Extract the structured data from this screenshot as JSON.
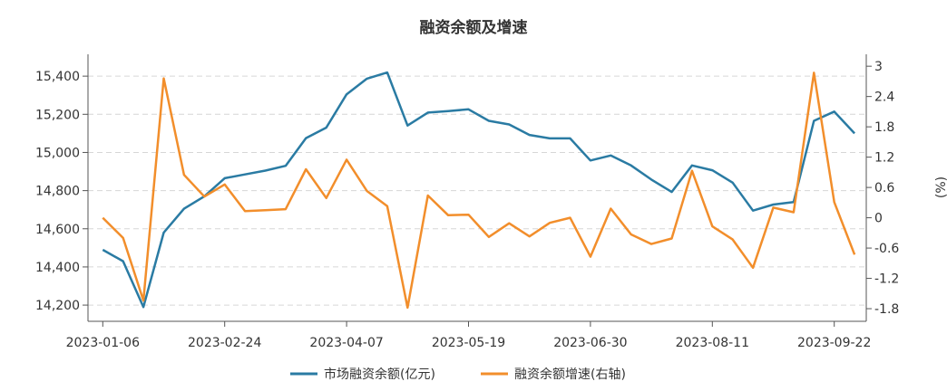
{
  "chart_data": {
    "type": "line",
    "title": "融资余额及增速",
    "right_ylabel": "(%)",
    "x": [
      "2023-01-06",
      "2023-01-13",
      "2023-01-20",
      "2023-02-03",
      "2023-02-10",
      "2023-02-17",
      "2023-02-24",
      "2023-03-03",
      "2023-03-10",
      "2023-03-17",
      "2023-03-24",
      "2023-03-31",
      "2023-04-07",
      "2023-04-14",
      "2023-04-21",
      "2023-04-28",
      "2023-05-05",
      "2023-05-12",
      "2023-05-19",
      "2023-05-26",
      "2023-06-02",
      "2023-06-09",
      "2023-06-16",
      "2023-06-21",
      "2023-06-30",
      "2023-07-07",
      "2023-07-14",
      "2023-07-21",
      "2023-07-28",
      "2023-08-04",
      "2023-08-11",
      "2023-08-18",
      "2023-08-25",
      "2023-09-01",
      "2023-09-08",
      "2023-09-15",
      "2023-09-22",
      "2023-09-28"
    ],
    "x_tick_labels": [
      "2023-01-06",
      "2023-02-24",
      "2023-04-07",
      "2023-05-19",
      "2023-06-30",
      "2023-08-11",
      "2023-09-22"
    ],
    "left_axis": {
      "ticks": [
        "14,200",
        "14,400",
        "14,600",
        "14,800",
        "15,000",
        "15,200",
        "15,400"
      ],
      "tick_values": [
        14200,
        14400,
        14600,
        14800,
        15000,
        15200,
        15400
      ],
      "ylim": [
        14115,
        15505
      ]
    },
    "right_axis": {
      "ticks": [
        "-1.8",
        "-1.2",
        "-0.6",
        "0",
        "0.6",
        "1.2",
        "1.8",
        "2.4",
        "3"
      ],
      "tick_values": [
        -1.8,
        -1.2,
        -0.6,
        0,
        0.6,
        1.2,
        1.8,
        2.4,
        3
      ],
      "ylim": [
        -2.05,
        3.2
      ]
    },
    "grid": "horizontal dashed at left-axis ticks",
    "legend_placement": "bottom",
    "series": [
      {
        "name": "市场融资余额(亿元)",
        "axis": "left",
        "color": "#2a7ba3",
        "values": [
          14490,
          14430,
          14190,
          14580,
          14705,
          14770,
          14865,
          14885,
          14905,
          14930,
          15075,
          15130,
          15305,
          15387,
          15419,
          15141,
          15209,
          15217,
          15226,
          15166,
          15147,
          15092,
          15074,
          15074,
          14958,
          14984,
          14932,
          14858,
          14793,
          14932,
          14907,
          14842,
          14695,
          14727,
          14740,
          15166,
          15214,
          15100
        ]
      },
      {
        "name": "融资余额增速(右轴)",
        "axis": "right",
        "color": "#f28e2b",
        "values": [
          0.0,
          -0.4,
          -1.64,
          2.76,
          0.85,
          0.42,
          0.66,
          0.13,
          0.15,
          0.17,
          0.96,
          0.39,
          1.15,
          0.53,
          0.23,
          -1.78,
          0.44,
          0.05,
          0.06,
          -0.38,
          -0.11,
          -0.37,
          -0.1,
          0.0,
          -0.77,
          0.18,
          -0.33,
          -0.52,
          -0.41,
          0.93,
          -0.17,
          -0.43,
          -0.99,
          0.2,
          0.11,
          2.87,
          0.31,
          -0.73
        ]
      }
    ]
  }
}
